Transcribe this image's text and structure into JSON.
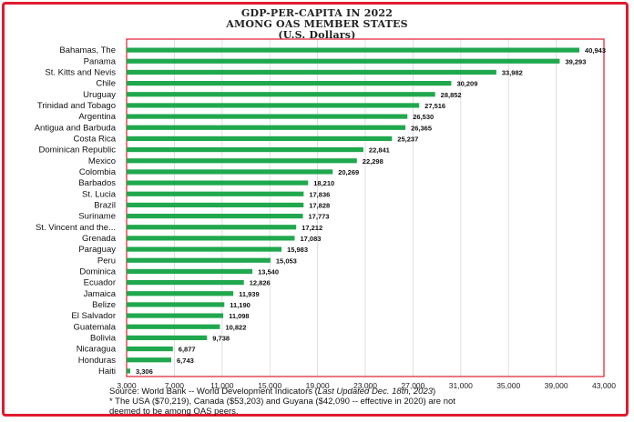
{
  "header": {
    "title_line1": "GDP-PER-CAPITA IN 2022",
    "title_line2": "AMONG OAS MEMBER STATES",
    "title_line3": "(U.S. Dollars)"
  },
  "footer": {
    "source_prefix": "Source:  World Bank -- World Development Indicators (",
    "source_italic": "Last Updated Dec. 18th, 2023",
    "source_suffix": ")",
    "note_line1": "* The USA ($70,219), Canada ($53,203) and Guyana ($42,090 -- effective in 2020) are not",
    "note_line2": "deemed to be among OAS peers."
  },
  "colors": {
    "bar": "#1fa84d",
    "border": "#e01b2f",
    "grid": "#d8d8d8"
  },
  "chart_data": {
    "type": "bar",
    "orientation": "horizontal",
    "title": "GDP-PER-CAPITA IN 2022 AMONG OAS MEMBER STATES (U.S. Dollars)",
    "xlim": [
      3000,
      43000
    ],
    "x_ticks": [
      "3,000",
      "7,000",
      "11,000",
      "15,000",
      "19,000",
      "23,000",
      "27,000",
      "31,000",
      "35,000",
      "39,000",
      "43,000"
    ],
    "x_tick_values": [
      3000,
      7000,
      11000,
      15000,
      19000,
      23000,
      27000,
      31000,
      35000,
      39000,
      43000
    ],
    "grid": "vertical",
    "categories": [
      "Bahamas, The",
      "Panama",
      "St. Kitts and Nevis",
      "Chile",
      "Uruguay",
      "Trinidad and Tobago",
      "Argentina",
      "Antigua and Barbuda",
      "Costa Rica",
      "Dominican Republic",
      "Mexico",
      "Colombia",
      "Barbados",
      "St. Lucia",
      "Brazil",
      "Suriname",
      "St. Vincent and the...",
      "Grenada",
      "Paraguay",
      "Peru",
      "Dominica",
      "Ecuador",
      "Jamaica",
      "Belize",
      "El Salvador",
      "Guatemala",
      "Bolivia",
      "Nicaragua",
      "Honduras",
      "Haiti"
    ],
    "values": [
      40943,
      39293,
      33982,
      30209,
      28852,
      27516,
      26530,
      26365,
      25237,
      22841,
      22298,
      20269,
      18210,
      17836,
      17828,
      17773,
      17212,
      17083,
      15983,
      15053,
      13540,
      12826,
      11939,
      11190,
      11098,
      10822,
      9738,
      6877,
      6743,
      3306
    ],
    "value_labels": [
      "40,943",
      "39,293",
      "33,982",
      "30,209",
      "28,852",
      "27,516",
      "26,530",
      "26,365",
      "25,237",
      "22,841",
      "22,298",
      "20,269",
      "18,210",
      "17,836",
      "17,828",
      "17,773",
      "17,212",
      "17,083",
      "15,983",
      "15,053",
      "13,540",
      "12,826",
      "11,939",
      "11,190",
      "11,098",
      "10,822",
      "9,738",
      "6,877",
      "6,743",
      "3,306"
    ]
  }
}
